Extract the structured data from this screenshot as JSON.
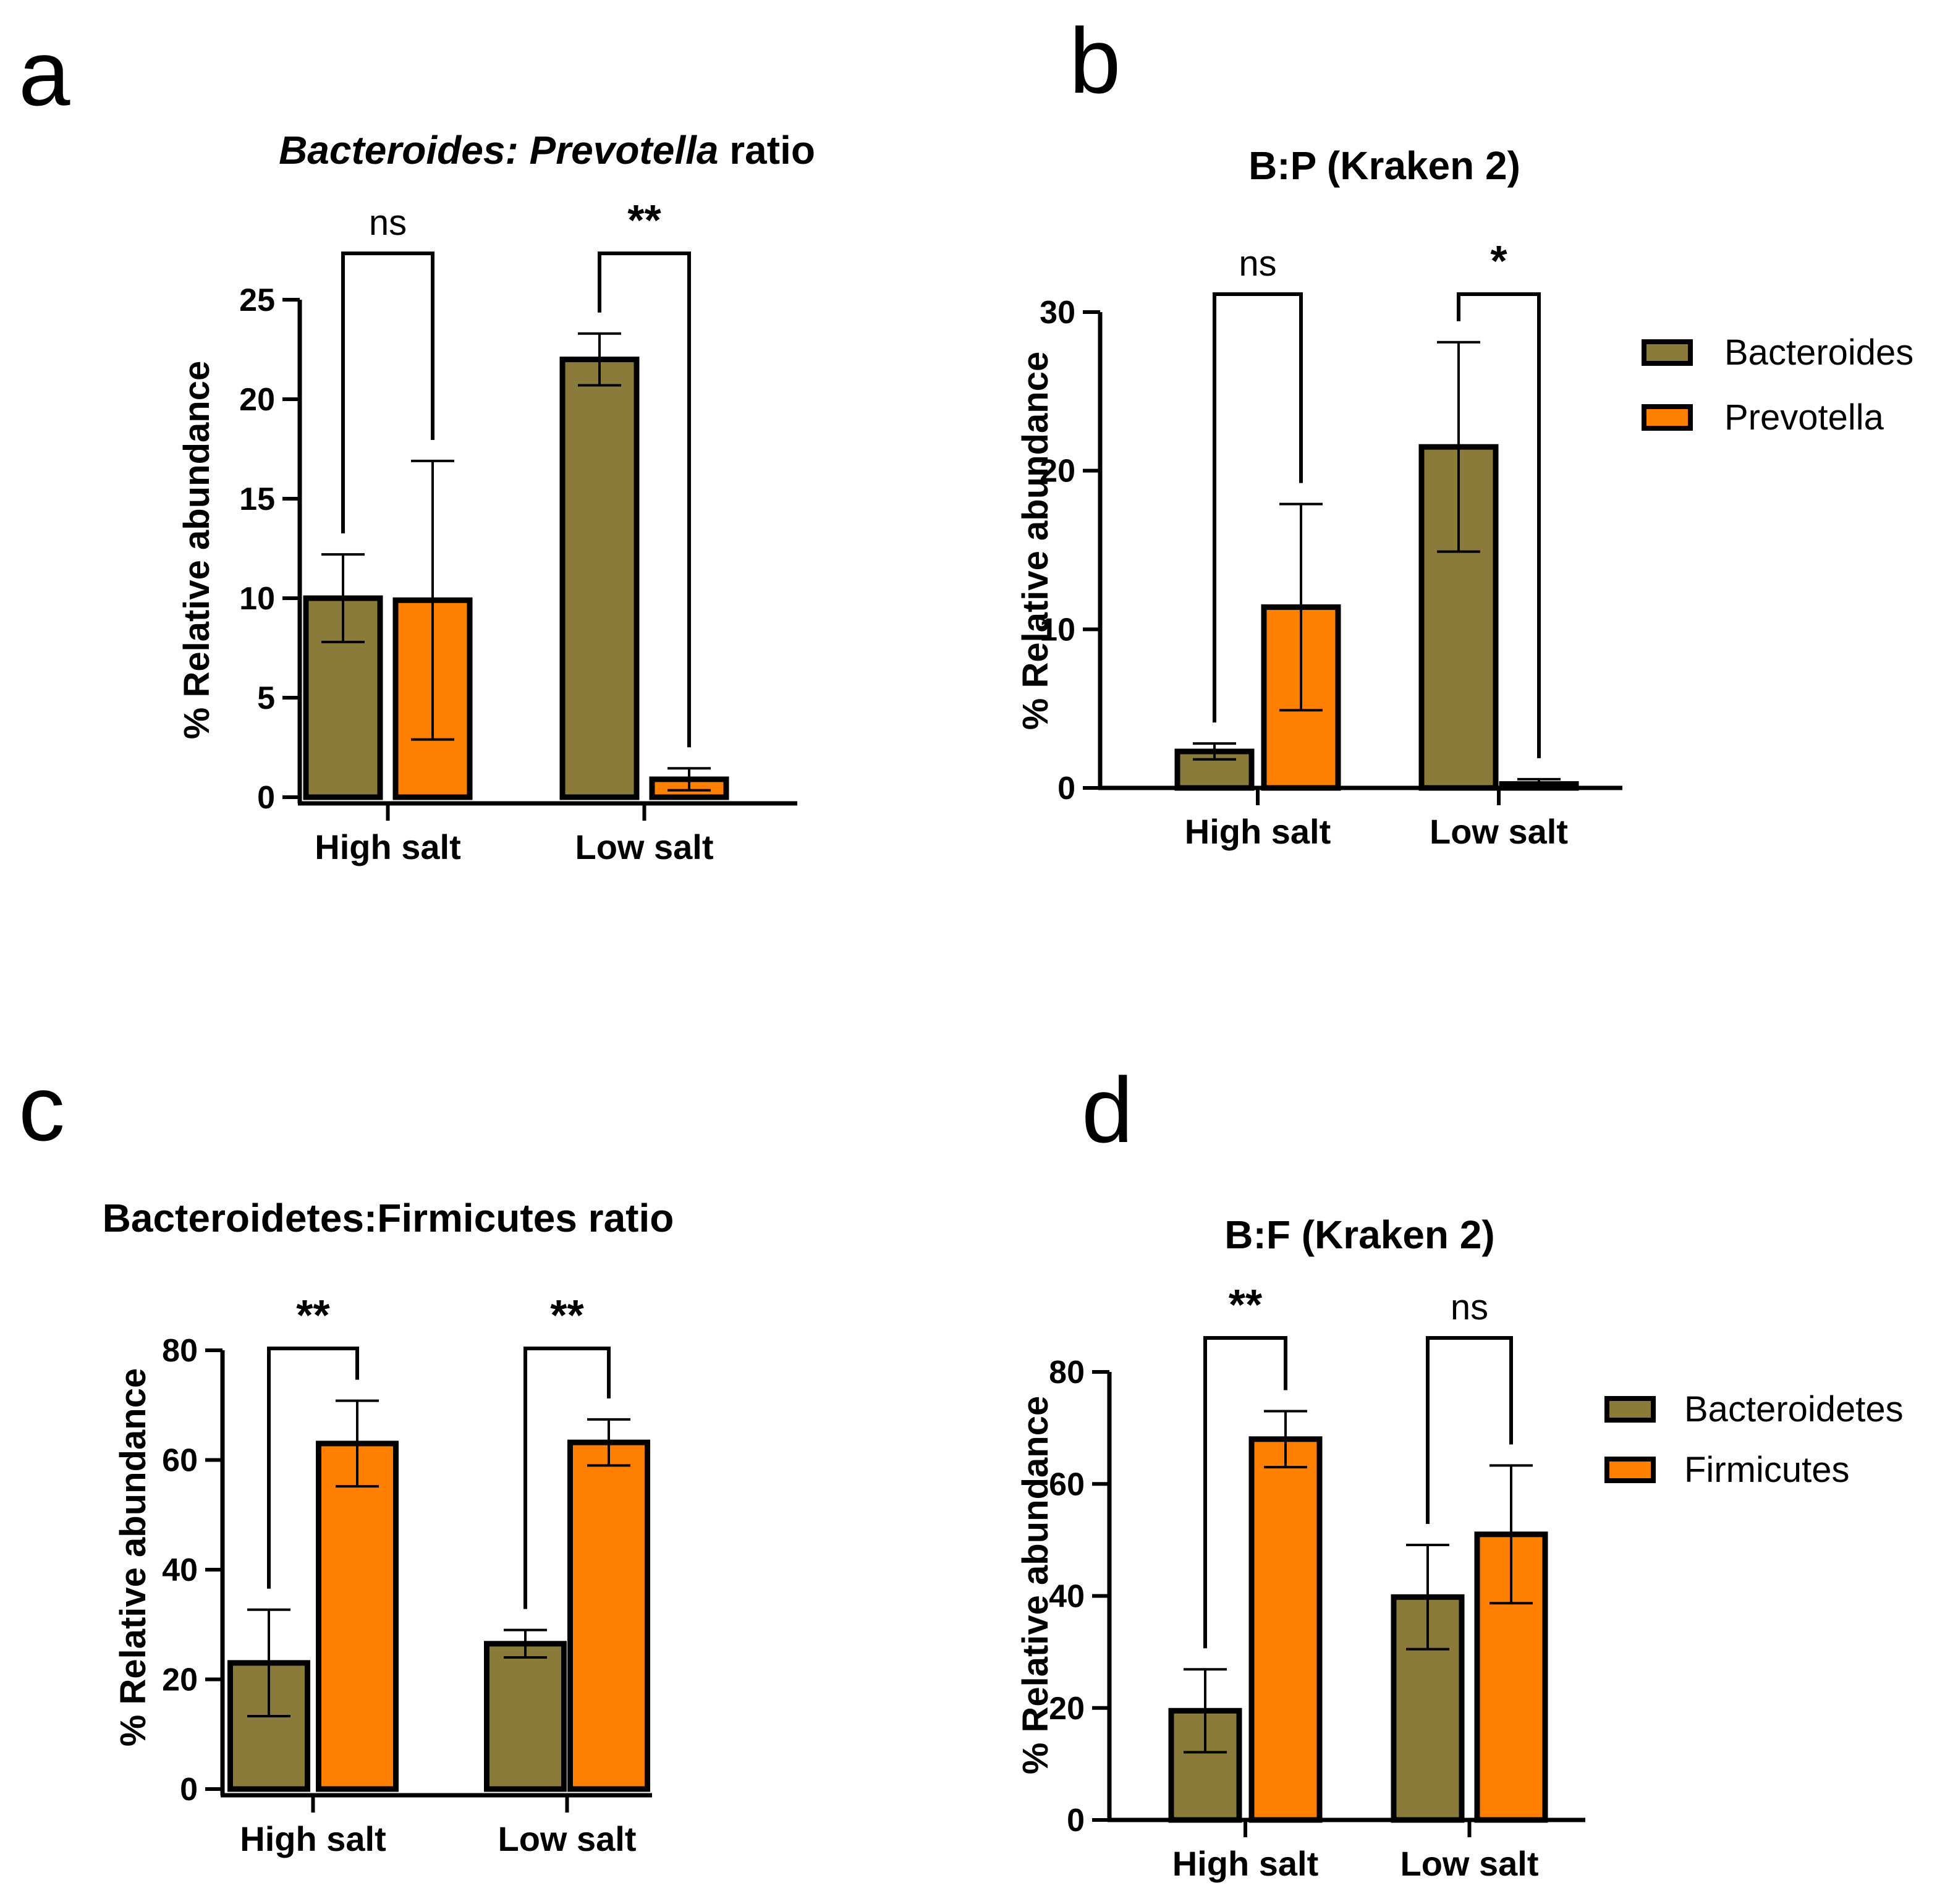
{
  "figure": {
    "colors": {
      "bacteria_a": "#8b7b3a",
      "bacteria_b": "#ff7f00",
      "outline": "#000000"
    }
  },
  "chart_data": [
    {
      "id": "a",
      "letter": "a",
      "type": "bar",
      "title_italic": "Bacteroides: Prevotella",
      "title_rest": " ratio",
      "ylabel": "% Relative abundance",
      "xlabel": "",
      "ylim": [
        0,
        25
      ],
      "yticks": [
        0,
        5,
        10,
        15,
        20,
        25
      ],
      "categories": [
        "High salt",
        "Low salt"
      ],
      "series": [
        {
          "name": "Bacteroides",
          "color": "#8b7b3a",
          "values": [
            10.0,
            22.0
          ],
          "errors": [
            2.2,
            1.3
          ]
        },
        {
          "name": "Prevotella",
          "color": "#ff7f00",
          "values": [
            9.9,
            0.9
          ],
          "errors": [
            7.0,
            0.55
          ]
        }
      ],
      "significance": [
        "ns",
        "**"
      ],
      "legend": null
    },
    {
      "id": "b",
      "letter": "b",
      "type": "bar",
      "title": "B:P (Kraken 2)",
      "ylabel": "% Relative abundance",
      "xlabel": "",
      "ylim": [
        0,
        30
      ],
      "yticks": [
        0,
        10,
        20,
        30
      ],
      "categories": [
        "High salt",
        "Low salt"
      ],
      "series": [
        {
          "name": "Bacteroides",
          "color": "#8b7b3a",
          "values": [
            2.3,
            21.5
          ],
          "errors": [
            0.5,
            6.6
          ]
        },
        {
          "name": "Prevotella",
          "color": "#ff7f00",
          "values": [
            11.4,
            0.25
          ],
          "errors": [
            6.5,
            0.3
          ]
        }
      ],
      "significance": [
        "ns",
        "*"
      ],
      "legend": {
        "position": "right",
        "entries": [
          "Bacteroides",
          "Prevotella"
        ]
      }
    },
    {
      "id": "c",
      "letter": "c",
      "type": "bar",
      "title": "Bacteroidetes:Firmicutes ratio",
      "ylabel": "% Relative abundance",
      "xlabel": "",
      "ylim": [
        0,
        80
      ],
      "yticks": [
        0,
        20,
        40,
        60,
        80
      ],
      "categories": [
        "High salt",
        "Low salt"
      ],
      "series": [
        {
          "name": "Bacteroidetes",
          "color": "#8b7b3a",
          "values": [
            23.0,
            26.5
          ],
          "errors": [
            9.7,
            2.5
          ]
        },
        {
          "name": "Firmicutes",
          "color": "#ff7f00",
          "values": [
            63.0,
            63.2
          ],
          "errors": [
            7.8,
            4.2
          ]
        }
      ],
      "significance": [
        "**",
        "**"
      ],
      "legend": null
    },
    {
      "id": "d",
      "letter": "d",
      "type": "bar",
      "title": "B:F (Kraken 2)",
      "ylabel": "% Relative abundance",
      "xlabel": "",
      "ylim": [
        0,
        80
      ],
      "yticks": [
        0,
        20,
        40,
        60,
        80
      ],
      "categories": [
        "High salt",
        "Low salt"
      ],
      "series": [
        {
          "name": "Bacteroidetes",
          "color": "#8b7b3a",
          "values": [
            19.5,
            39.8
          ],
          "errors": [
            7.4,
            9.3
          ]
        },
        {
          "name": "Firmicutes",
          "color": "#ff7f00",
          "values": [
            68.0,
            51.0
          ],
          "errors": [
            5.0,
            12.3
          ]
        }
      ],
      "significance": [
        "**",
        "ns"
      ],
      "legend": {
        "position": "right",
        "entries": [
          "Bacteroidetes",
          "Firmicutes"
        ]
      }
    }
  ]
}
